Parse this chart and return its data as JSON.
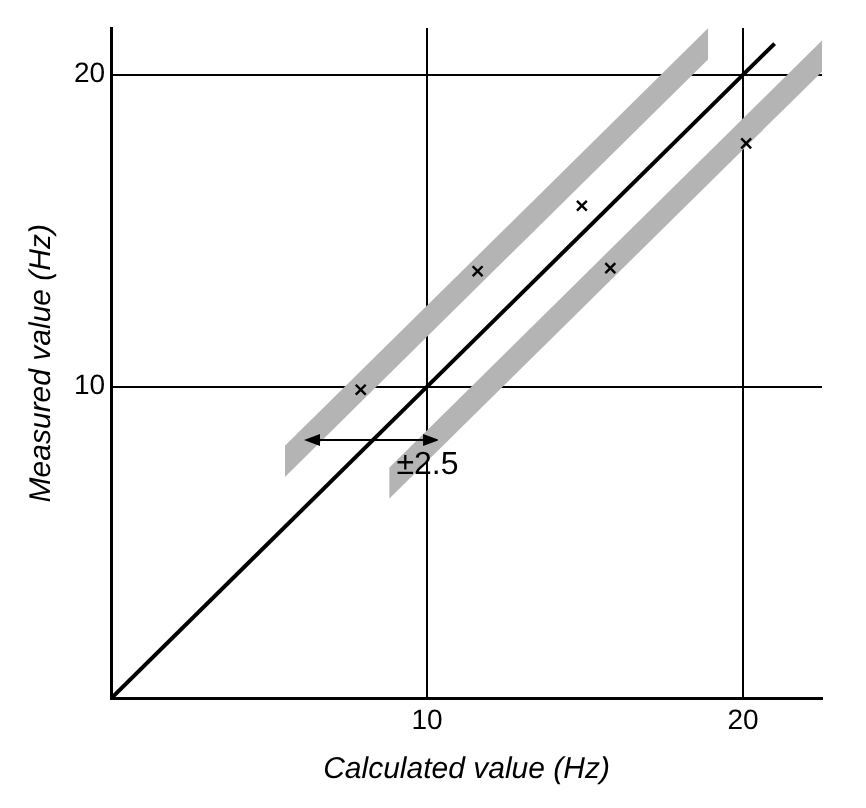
{
  "chart_data": {
    "type": "scatter",
    "xlabel": "Calculated value (Hz)",
    "ylabel": "Measured value (Hz)",
    "xlim": [
      0,
      22.5
    ],
    "ylim": [
      0,
      21.5
    ],
    "xticks": [
      10,
      20
    ],
    "yticks": [
      10,
      20
    ],
    "grid": true,
    "legend": false,
    "marker": "cross",
    "series": [
      {
        "type": "area",
        "color": "#b4b4b4",
        "x": [
          5.5,
          18.9
        ],
        "values": [
          null,
          null
        ],
        "lower": [
          7.1,
          20.5
        ],
        "upper": [
          8.1,
          21.5
        ]
      },
      {
        "type": "area",
        "color": "#b4b4b4",
        "x": [
          8.8,
          22.5
        ],
        "values": [
          null,
          null
        ],
        "lower": [
          6.4,
          20.1
        ],
        "upper": [
          7.4,
          21.1
        ]
      },
      {
        "type": "line",
        "color": "#000000",
        "marker": "none",
        "x": [
          0,
          21
        ],
        "values": [
          0,
          21
        ]
      },
      {
        "type": "scatter",
        "color": "#000000",
        "x": [
          7.9,
          11.6,
          14.9,
          15.8,
          20.1
        ],
        "values": [
          9.9,
          13.7,
          15.8,
          13.8,
          17.8
        ]
      }
    ],
    "annotations": [
      "±2.5"
    ]
  }
}
